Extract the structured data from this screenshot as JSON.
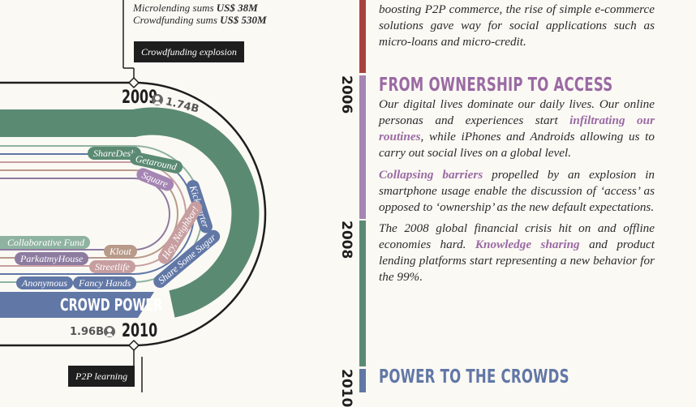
{
  "stats": {
    "microlending_label": "Microlending sums",
    "microlending_value": "US$ 38M",
    "crowdfunding_label": "Crowdfunding sums",
    "crowdfunding_value": "US$ 530M"
  },
  "callouts": {
    "crowdfunding_explosion": "Crowdfunding explosion",
    "p2p_learning": "P2P learning"
  },
  "years": {
    "top": {
      "year": "2009",
      "count": "1.74B"
    },
    "bottom": {
      "year": "2010",
      "count": "1.96B"
    }
  },
  "band_label": "CROWD POWER",
  "pills": {
    "sharedesk": "ShareDesk",
    "getaround": "Getaround",
    "square": "Square",
    "kickstarter": "Kickstarter",
    "hey_neighbor": "Hey, Neighbor!",
    "share_some_sugar": "Share Some Sugar",
    "collaborative_fund": "Collaborative Fund",
    "klout": "Klout",
    "parkatmyhouse": "ParkatmyHouse",
    "streetlife": "Streetlife",
    "anonymous": "Anonymous",
    "fancy_hands": "Fancy Hands"
  },
  "timeline": {
    "years": [
      "2006",
      "2008",
      "2010"
    ],
    "intro_text": "boosting P2P commerce, the rise of simple e-commerce solutions gave way for social applications such as micro-loans and micro-credit.",
    "section1": {
      "heading": "FROM OWNERSHIP TO ACCESS",
      "p1_a": "Our digital lives dominate our daily lives. Our online personas and experiences start ",
      "p1_hl": "infiltrating our routines",
      "p1_b": ", while iPhones and Androids allowing us to carry out social lives on a global level.",
      "p2_hl": "Collapsing barriers",
      "p2_b": " propelled by an explosion in smartphone usage enable the discussion of ‘access’ as opposed to ‘ownership’ as the new default expectations.",
      "p3_a": "The 2008 global financial crisis hit on and offline economies hard. ",
      "p3_hl": "Knowledge sharing",
      "p3_b": " and product lending platforms start representing a new behavior for the 99%."
    },
    "section2": {
      "heading": "POWER TO THE CROWDS"
    }
  },
  "colors": {
    "green": "#5b8a73",
    "purple": "#a585b3",
    "blue": "#6177a6",
    "red": "#a8423f",
    "mauve": "#c79ea0",
    "tan": "#b89a8a",
    "sage": "#8fb3a1",
    "lavender": "#8d7ba0"
  },
  "icons": [
    "person-icon"
  ]
}
